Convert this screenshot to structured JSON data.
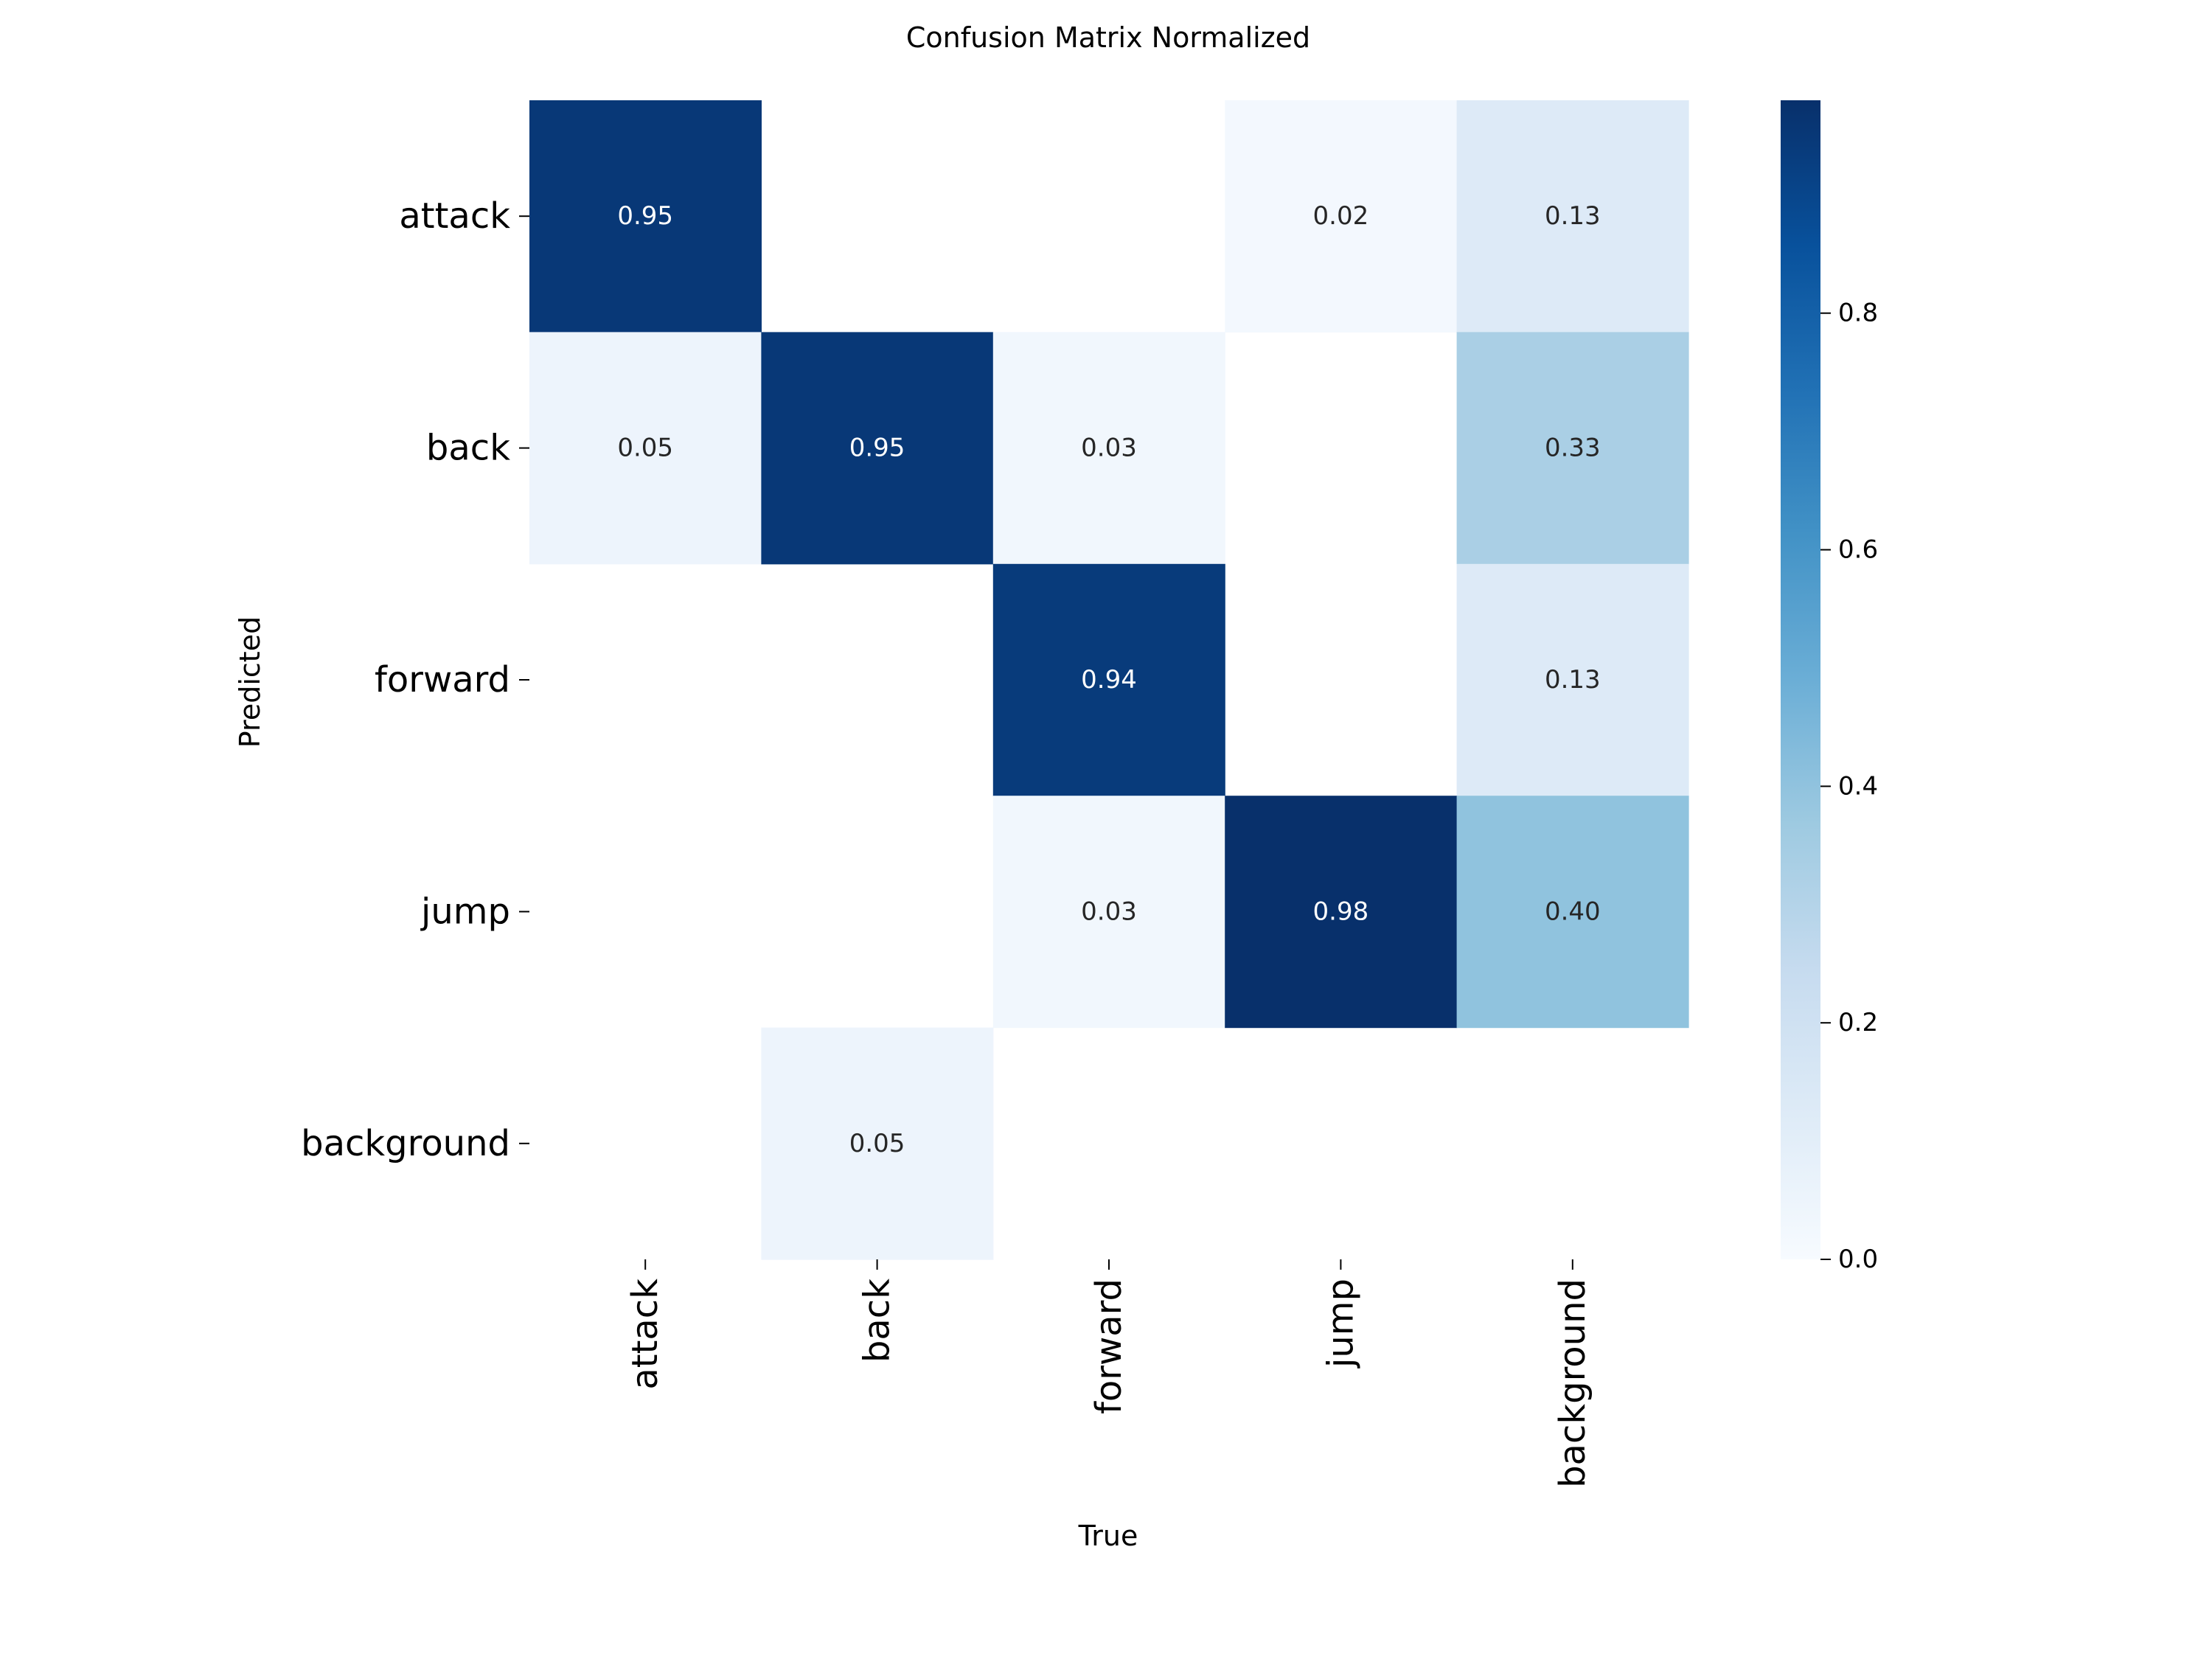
{
  "chart_data": {
    "type": "heatmap",
    "title": "Confusion Matrix Normalized",
    "xlabel": "True",
    "ylabel": "Predicted",
    "x_categories": [
      "attack",
      "back",
      "forward",
      "jump",
      "background"
    ],
    "y_categories": [
      "attack",
      "back",
      "forward",
      "jump",
      "background"
    ],
    "values": [
      [
        0.95,
        null,
        null,
        0.02,
        0.13
      ],
      [
        0.05,
        0.95,
        0.03,
        null,
        0.33
      ],
      [
        null,
        null,
        0.94,
        null,
        0.13
      ],
      [
        null,
        null,
        0.03,
        0.98,
        0.4
      ],
      [
        null,
        0.05,
        null,
        null,
        null
      ]
    ],
    "value_labels": [
      [
        "0.95",
        "",
        "",
        "0.02",
        "0.13"
      ],
      [
        "0.05",
        "0.95",
        "0.03",
        "",
        "0.33"
      ],
      [
        "",
        "",
        "0.94",
        "",
        "0.13"
      ],
      [
        "",
        "",
        "0.03",
        "0.98",
        "0.40"
      ],
      [
        "",
        "0.05",
        "",
        "",
        ""
      ]
    ],
    "colormap": "Blues",
    "colorbar": {
      "min": 0.0,
      "max": 0.98,
      "ticks": [
        0.0,
        0.2,
        0.4,
        0.6,
        0.8
      ],
      "tick_labels": [
        "0.0",
        "0.2",
        "0.4",
        "0.6",
        "0.8"
      ]
    },
    "grid": false,
    "legend": "none"
  }
}
